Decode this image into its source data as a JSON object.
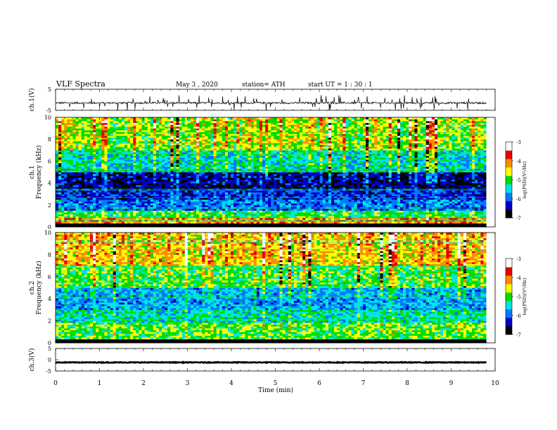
{
  "header": {
    "title": "VLF Spectra",
    "date": "May 3 , 2020",
    "station": "station= ATH",
    "start_ut": "start UT = 1 : 30 : 1"
  },
  "chart_data": [
    {
      "type": "line",
      "name": "ch1-waveform",
      "ylabel": "ch.1(V)",
      "yticks": [
        "5",
        "-5"
      ],
      "ylim": [
        -5,
        5
      ],
      "xlim": [
        0,
        10
      ],
      "data_end_min": 9.8,
      "baseline": -1.5,
      "noise_amplitude": 0.45,
      "spike_count": 60
    },
    {
      "type": "heatmap",
      "name": "ch1-spectrogram",
      "ylabel_top": "ch.1",
      "ylabel": "Frequency (kHz)",
      "yticks": [
        "0",
        "2",
        "4",
        "6",
        "8",
        "10"
      ],
      "ylim": [
        0,
        10
      ],
      "xlim": [
        0,
        10
      ],
      "data_end_min": 9.8,
      "colorbar": {
        "label": "log(PSD)(V²/Hz)",
        "ticks": [
          "-3",
          "-4",
          "-5",
          "-6",
          "-7"
        ],
        "range": [
          -7,
          -3
        ],
        "colors": [
          "#000000",
          "#0000c8",
          "#0078ff",
          "#00e6e6",
          "#00dc00",
          "#ffff00",
          "#ff8c00",
          "#e60000",
          "#ffffff"
        ]
      },
      "bands": [
        {
          "f": [
            0.0,
            0.3
          ],
          "level": -7.0
        },
        {
          "f": [
            0.3,
            0.8
          ],
          "level": -4.2
        },
        {
          "f": [
            0.8,
            1.5
          ],
          "level": -5.2
        },
        {
          "f": [
            1.5,
            2.5
          ],
          "level": -6.0
        },
        {
          "f": [
            2.5,
            3.5
          ],
          "level": -6.3
        },
        {
          "f": [
            3.5,
            5.0
          ],
          "level": -6.6
        },
        {
          "f": [
            5.0,
            7.0
          ],
          "level": -5.6
        },
        {
          "f": [
            7.0,
            10.0
          ],
          "level": -5.0
        }
      ]
    },
    {
      "type": "heatmap",
      "name": "ch2-spectrogram",
      "ylabel_top": "ch.2",
      "ylabel": "Frequency (kHz)",
      "yticks": [
        "0",
        "2",
        "4",
        "6",
        "8",
        "10"
      ],
      "ylim": [
        0,
        10
      ],
      "xlim": [
        0,
        10
      ],
      "data_end_min": 9.8,
      "colorbar": {
        "label": "log(PSD)(V²/Hz)",
        "ticks": [
          "-3",
          "-4",
          "-5",
          "-6",
          "-7"
        ],
        "range": [
          -7,
          -3
        ],
        "colors": [
          "#000000",
          "#0000c8",
          "#0078ff",
          "#00e6e6",
          "#00dc00",
          "#ffff00",
          "#ff8c00",
          "#e60000",
          "#ffffff"
        ]
      },
      "bands": [
        {
          "f": [
            0.0,
            0.3
          ],
          "level": -7.0
        },
        {
          "f": [
            0.3,
            1.8
          ],
          "level": -5.0
        },
        {
          "f": [
            1.8,
            3.0
          ],
          "level": -5.4
        },
        {
          "f": [
            3.0,
            5.0
          ],
          "level": -5.8
        },
        {
          "f": [
            5.0,
            7.0
          ],
          "level": -5.2
        },
        {
          "f": [
            7.0,
            10.0
          ],
          "level": -4.6
        }
      ]
    },
    {
      "type": "line",
      "name": "ch3-waveform",
      "ylabel": "ch.3(V)",
      "yticks": [
        "5",
        "0",
        "-5"
      ],
      "ylim": [
        -5,
        5
      ],
      "xlim": [
        0,
        10
      ],
      "data_end_min": 9.8,
      "baseline": -1.2,
      "noise_amplitude": 0.15,
      "spike_count": 0
    }
  ],
  "xaxis": {
    "label": "Time (min)",
    "ticks": [
      "0",
      "1",
      "2",
      "3",
      "4",
      "5",
      "6",
      "7",
      "8",
      "9",
      "10"
    ]
  }
}
